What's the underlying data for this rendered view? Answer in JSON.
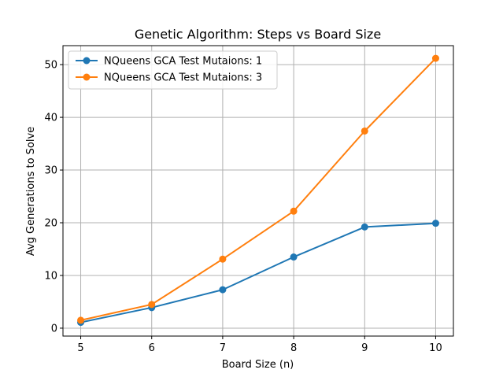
{
  "chart_data": {
    "type": "line",
    "title": "Genetic Algorithm: Steps vs Board Size",
    "xlabel": "Board Size (n)",
    "ylabel": "Avg Generations to Solve",
    "x": [
      5,
      6,
      7,
      8,
      9,
      10
    ],
    "x_ticks": [
      "5",
      "6",
      "7",
      "8",
      "9",
      "10"
    ],
    "y_ticks": [
      "0",
      "10",
      "20",
      "30",
      "40",
      "50"
    ],
    "xlim": [
      4.75,
      10.25
    ],
    "ylim": [
      -1.5,
      53.6
    ],
    "grid": true,
    "legend_position": "upper-left",
    "series": [
      {
        "name": "NQueens GCA Test Mutaions: 1",
        "color": "#1f77b4",
        "values": [
          1.1,
          3.9,
          7.3,
          13.5,
          19.2,
          19.9
        ]
      },
      {
        "name": "NQueens GCA Test Mutaions: 3",
        "color": "#ff7f0e",
        "values": [
          1.5,
          4.5,
          13.1,
          22.2,
          37.4,
          51.2
        ]
      }
    ]
  }
}
